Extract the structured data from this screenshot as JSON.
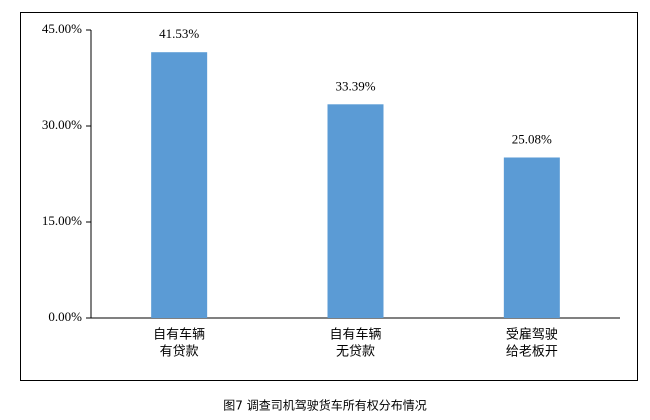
{
  "chart_data": {
    "type": "bar",
    "title": "图7 调查司机驾驶货车所有权分布情况",
    "categories": [
      [
        "自有车辆",
        "有贷款"
      ],
      [
        "自有车辆",
        "无贷款"
      ],
      [
        "受雇驾驶",
        "给老板开"
      ]
    ],
    "values": [
      41.53,
      33.39,
      25.08
    ],
    "value_labels": [
      "41.53%",
      "33.39%",
      "25.08%"
    ],
    "color": "#5b9bd5",
    "ylim": [
      0,
      45
    ],
    "yticks": [
      {
        "value": 0,
        "label": "0.00%"
      },
      {
        "value": 15,
        "label": "15.00%"
      },
      {
        "value": 30,
        "label": "30.00%"
      },
      {
        "value": 45,
        "label": "45.00%"
      }
    ],
    "grid": false
  }
}
